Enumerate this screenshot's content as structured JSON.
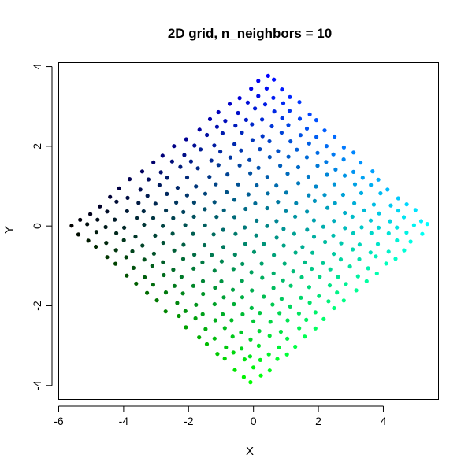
{
  "chart_data": {
    "type": "scatter",
    "title": "2D grid, n_neighbors = 10",
    "xlabel": "X",
    "ylabel": "Y",
    "xlim": [
      -6.0,
      5.7
    ],
    "ylim": [
      -4.35,
      4.1
    ],
    "xticks": [
      -6,
      -4,
      -2,
      0,
      2,
      4
    ],
    "yticks": [
      -4,
      -2,
      0,
      2,
      4
    ],
    "grid": false,
    "legend": "none",
    "point_color_scheme": "x-index maps to blue channel, y-index maps to green channel (black to blue, green, cyan)",
    "grid_layout": {
      "rows": 20,
      "cols": 20,
      "corners": {
        "black": [
          -5.6,
          0.0
        ],
        "blue": [
          0.45,
          3.8
        ],
        "green": [
          -0.05,
          -3.95
        ],
        "cyan": [
          5.4,
          0.0
        ]
      }
    }
  }
}
